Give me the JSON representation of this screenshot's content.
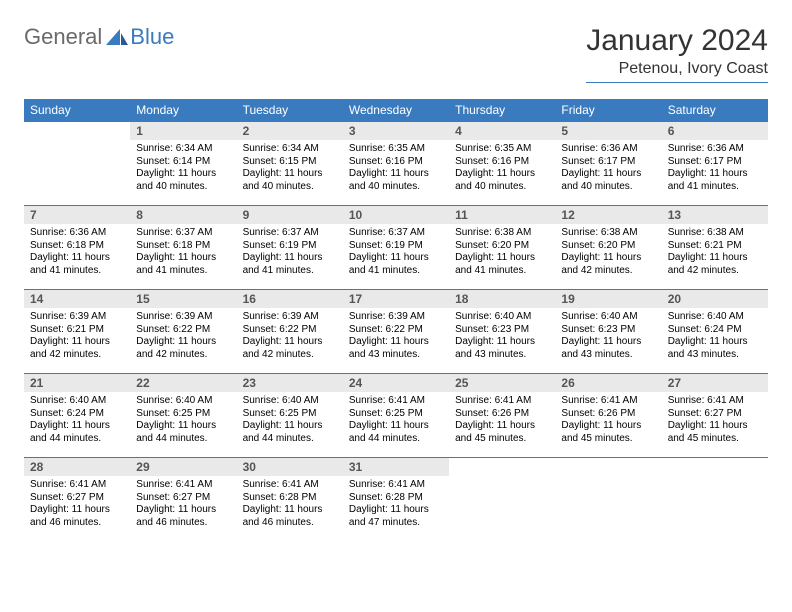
{
  "brand": {
    "general": "General",
    "blue": "Blue"
  },
  "title": "January 2024",
  "location": "Petenou, Ivory Coast",
  "colors": {
    "header_bg": "#3a7bbf",
    "header_fg": "#ffffff",
    "daynum_bg": "#e9e9e9",
    "rule": "#3a7bbf",
    "logo_gray": "#6a6a6a",
    "logo_blue": "#3a7bbf"
  },
  "typography": {
    "title_fontsize": 30,
    "location_fontsize": 16,
    "weekday_fontsize": 12,
    "daynum_fontsize": 12,
    "body_fontsize": 10
  },
  "weekdays": [
    "Sunday",
    "Monday",
    "Tuesday",
    "Wednesday",
    "Thursday",
    "Friday",
    "Saturday"
  ],
  "weeks": [
    [
      null,
      {
        "n": "1",
        "sunrise": "Sunrise: 6:34 AM",
        "sunset": "Sunset: 6:14 PM",
        "d1": "Daylight: 11 hours",
        "d2": "and 40 minutes."
      },
      {
        "n": "2",
        "sunrise": "Sunrise: 6:34 AM",
        "sunset": "Sunset: 6:15 PM",
        "d1": "Daylight: 11 hours",
        "d2": "and 40 minutes."
      },
      {
        "n": "3",
        "sunrise": "Sunrise: 6:35 AM",
        "sunset": "Sunset: 6:16 PM",
        "d1": "Daylight: 11 hours",
        "d2": "and 40 minutes."
      },
      {
        "n": "4",
        "sunrise": "Sunrise: 6:35 AM",
        "sunset": "Sunset: 6:16 PM",
        "d1": "Daylight: 11 hours",
        "d2": "and 40 minutes."
      },
      {
        "n": "5",
        "sunrise": "Sunrise: 6:36 AM",
        "sunset": "Sunset: 6:17 PM",
        "d1": "Daylight: 11 hours",
        "d2": "and 40 minutes."
      },
      {
        "n": "6",
        "sunrise": "Sunrise: 6:36 AM",
        "sunset": "Sunset: 6:17 PM",
        "d1": "Daylight: 11 hours",
        "d2": "and 41 minutes."
      }
    ],
    [
      {
        "n": "7",
        "sunrise": "Sunrise: 6:36 AM",
        "sunset": "Sunset: 6:18 PM",
        "d1": "Daylight: 11 hours",
        "d2": "and 41 minutes."
      },
      {
        "n": "8",
        "sunrise": "Sunrise: 6:37 AM",
        "sunset": "Sunset: 6:18 PM",
        "d1": "Daylight: 11 hours",
        "d2": "and 41 minutes."
      },
      {
        "n": "9",
        "sunrise": "Sunrise: 6:37 AM",
        "sunset": "Sunset: 6:19 PM",
        "d1": "Daylight: 11 hours",
        "d2": "and 41 minutes."
      },
      {
        "n": "10",
        "sunrise": "Sunrise: 6:37 AM",
        "sunset": "Sunset: 6:19 PM",
        "d1": "Daylight: 11 hours",
        "d2": "and 41 minutes."
      },
      {
        "n": "11",
        "sunrise": "Sunrise: 6:38 AM",
        "sunset": "Sunset: 6:20 PM",
        "d1": "Daylight: 11 hours",
        "d2": "and 41 minutes."
      },
      {
        "n": "12",
        "sunrise": "Sunrise: 6:38 AM",
        "sunset": "Sunset: 6:20 PM",
        "d1": "Daylight: 11 hours",
        "d2": "and 42 minutes."
      },
      {
        "n": "13",
        "sunrise": "Sunrise: 6:38 AM",
        "sunset": "Sunset: 6:21 PM",
        "d1": "Daylight: 11 hours",
        "d2": "and 42 minutes."
      }
    ],
    [
      {
        "n": "14",
        "sunrise": "Sunrise: 6:39 AM",
        "sunset": "Sunset: 6:21 PM",
        "d1": "Daylight: 11 hours",
        "d2": "and 42 minutes."
      },
      {
        "n": "15",
        "sunrise": "Sunrise: 6:39 AM",
        "sunset": "Sunset: 6:22 PM",
        "d1": "Daylight: 11 hours",
        "d2": "and 42 minutes."
      },
      {
        "n": "16",
        "sunrise": "Sunrise: 6:39 AM",
        "sunset": "Sunset: 6:22 PM",
        "d1": "Daylight: 11 hours",
        "d2": "and 42 minutes."
      },
      {
        "n": "17",
        "sunrise": "Sunrise: 6:39 AM",
        "sunset": "Sunset: 6:22 PM",
        "d1": "Daylight: 11 hours",
        "d2": "and 43 minutes."
      },
      {
        "n": "18",
        "sunrise": "Sunrise: 6:40 AM",
        "sunset": "Sunset: 6:23 PM",
        "d1": "Daylight: 11 hours",
        "d2": "and 43 minutes."
      },
      {
        "n": "19",
        "sunrise": "Sunrise: 6:40 AM",
        "sunset": "Sunset: 6:23 PM",
        "d1": "Daylight: 11 hours",
        "d2": "and 43 minutes."
      },
      {
        "n": "20",
        "sunrise": "Sunrise: 6:40 AM",
        "sunset": "Sunset: 6:24 PM",
        "d1": "Daylight: 11 hours",
        "d2": "and 43 minutes."
      }
    ],
    [
      {
        "n": "21",
        "sunrise": "Sunrise: 6:40 AM",
        "sunset": "Sunset: 6:24 PM",
        "d1": "Daylight: 11 hours",
        "d2": "and 44 minutes."
      },
      {
        "n": "22",
        "sunrise": "Sunrise: 6:40 AM",
        "sunset": "Sunset: 6:25 PM",
        "d1": "Daylight: 11 hours",
        "d2": "and 44 minutes."
      },
      {
        "n": "23",
        "sunrise": "Sunrise: 6:40 AM",
        "sunset": "Sunset: 6:25 PM",
        "d1": "Daylight: 11 hours",
        "d2": "and 44 minutes."
      },
      {
        "n": "24",
        "sunrise": "Sunrise: 6:41 AM",
        "sunset": "Sunset: 6:25 PM",
        "d1": "Daylight: 11 hours",
        "d2": "and 44 minutes."
      },
      {
        "n": "25",
        "sunrise": "Sunrise: 6:41 AM",
        "sunset": "Sunset: 6:26 PM",
        "d1": "Daylight: 11 hours",
        "d2": "and 45 minutes."
      },
      {
        "n": "26",
        "sunrise": "Sunrise: 6:41 AM",
        "sunset": "Sunset: 6:26 PM",
        "d1": "Daylight: 11 hours",
        "d2": "and 45 minutes."
      },
      {
        "n": "27",
        "sunrise": "Sunrise: 6:41 AM",
        "sunset": "Sunset: 6:27 PM",
        "d1": "Daylight: 11 hours",
        "d2": "and 45 minutes."
      }
    ],
    [
      {
        "n": "28",
        "sunrise": "Sunrise: 6:41 AM",
        "sunset": "Sunset: 6:27 PM",
        "d1": "Daylight: 11 hours",
        "d2": "and 46 minutes."
      },
      {
        "n": "29",
        "sunrise": "Sunrise: 6:41 AM",
        "sunset": "Sunset: 6:27 PM",
        "d1": "Daylight: 11 hours",
        "d2": "and 46 minutes."
      },
      {
        "n": "30",
        "sunrise": "Sunrise: 6:41 AM",
        "sunset": "Sunset: 6:28 PM",
        "d1": "Daylight: 11 hours",
        "d2": "and 46 minutes."
      },
      {
        "n": "31",
        "sunrise": "Sunrise: 6:41 AM",
        "sunset": "Sunset: 6:28 PM",
        "d1": "Daylight: 11 hours",
        "d2": "and 47 minutes."
      },
      null,
      null,
      null
    ]
  ]
}
